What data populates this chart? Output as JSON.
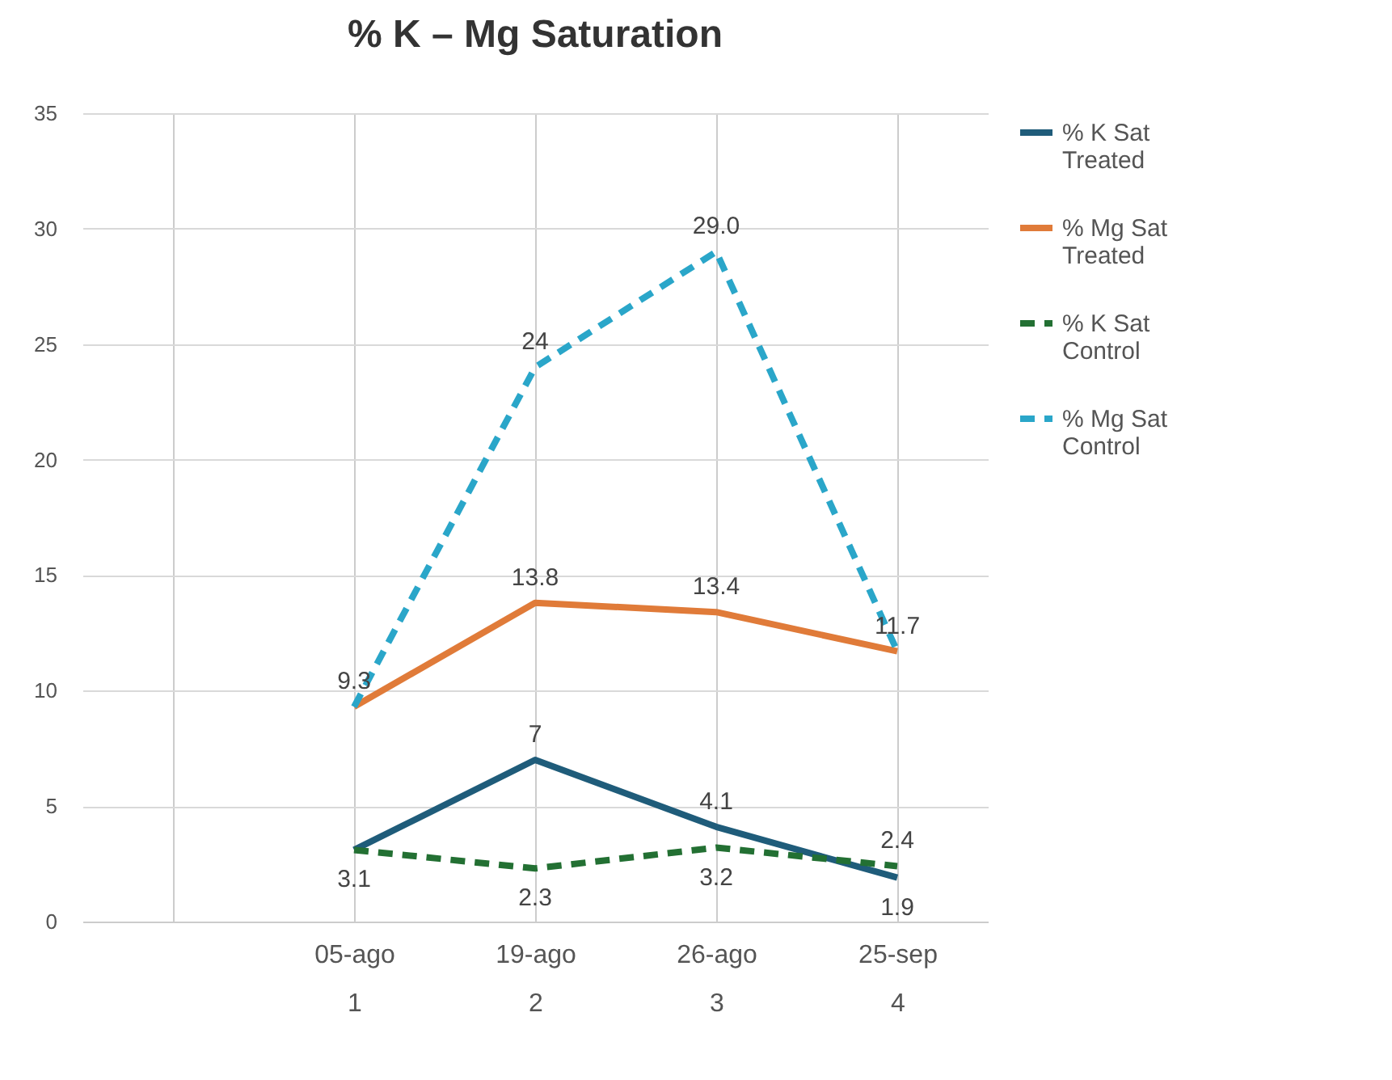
{
  "chart_data": {
    "type": "line",
    "title": "% K – Mg Saturation",
    "categories": [
      null,
      "05-ago\n1",
      "19-ago\n2",
      "26-ago\n3",
      "25-sep\n4"
    ],
    "series": [
      {
        "name": "% K Sat Treated",
        "color": "#1f5c7a",
        "line_style": "solid",
        "values": [
          null,
          3.1,
          7,
          4.1,
          1.9
        ],
        "value_labels": [
          null,
          "3.1",
          "7",
          "4.1",
          "1.9"
        ]
      },
      {
        "name": "% Mg Sat Treated",
        "color": "#e07b39",
        "line_style": "solid",
        "values": [
          null,
          9.3,
          13.8,
          13.4,
          11.7
        ],
        "value_labels": [
          null,
          "9.3",
          "13.8",
          "13.4",
          "11.7"
        ]
      },
      {
        "name": "% K Sat Control",
        "color": "#237033",
        "line_style": "dashed",
        "values": [
          null,
          3.1,
          2.3,
          3.2,
          2.4
        ],
        "value_labels": [
          null,
          null,
          "2.3",
          "3.2",
          "2.4"
        ]
      },
      {
        "name": "% Mg Sat Control",
        "color": "#2aa6c9",
        "line_style": "dashed",
        "values": [
          null,
          9.3,
          24,
          29.0,
          11.7
        ],
        "value_labels": [
          null,
          null,
          "24",
          "29.0",
          null
        ]
      }
    ],
    "ylim": [
      0,
      35
    ],
    "yticks": [
      0,
      5,
      10,
      15,
      20,
      25,
      30,
      35
    ],
    "grid": true,
    "legend": "right"
  }
}
